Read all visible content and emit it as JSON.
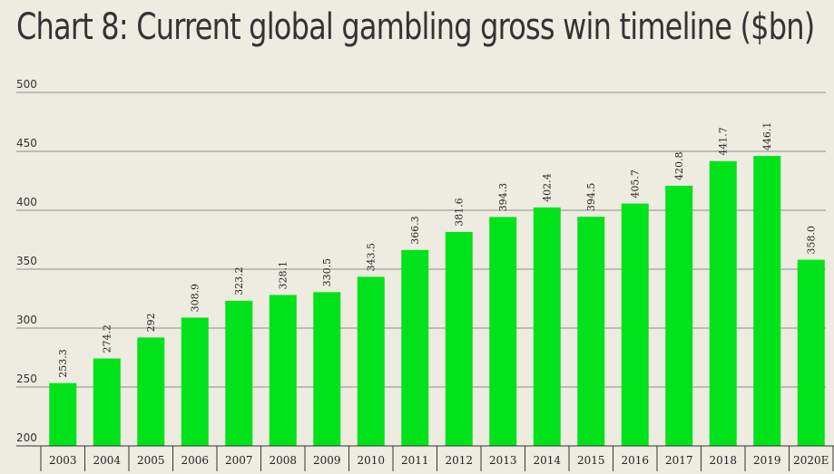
{
  "title": "Chart 8: Current global gambling gross win timeline ($bn)",
  "chart_data": {
    "type": "bar",
    "title": "Chart 8: Current global gambling gross win timeline ($bn)",
    "categories": [
      "2003",
      "2004",
      "2005",
      "2006",
      "2007",
      "2008",
      "2009",
      "2010",
      "2011",
      "2012",
      "2013",
      "2014",
      "2015",
      "2016",
      "2017",
      "2018",
      "2019",
      "2020E"
    ],
    "values": [
      253.3,
      274.2,
      292,
      308.9,
      323.2,
      328.1,
      330.5,
      343.5,
      366.3,
      381.6,
      394.3,
      402.4,
      394.5,
      405.7,
      420.8,
      441.7,
      446.1,
      358.0
    ],
    "data_labels": [
      "253.3",
      "274.2",
      "292",
      "308.9",
      "323.2",
      "328.1",
      "330.5",
      "343.5",
      "366.3",
      "381.6",
      "394.3",
      "402.4",
      "394.5",
      "405.7",
      "420.8",
      "441.7",
      "446.1",
      "358.0"
    ],
    "y_ticks": [
      200,
      250,
      300,
      350,
      400,
      450,
      500
    ],
    "ylim": [
      200,
      500
    ],
    "grid": true,
    "legend": "none",
    "xlabel": "",
    "ylabel": "",
    "bar_color": "#00e31a",
    "grid_color": "#8c8c8c",
    "background": "#eeebe0"
  }
}
